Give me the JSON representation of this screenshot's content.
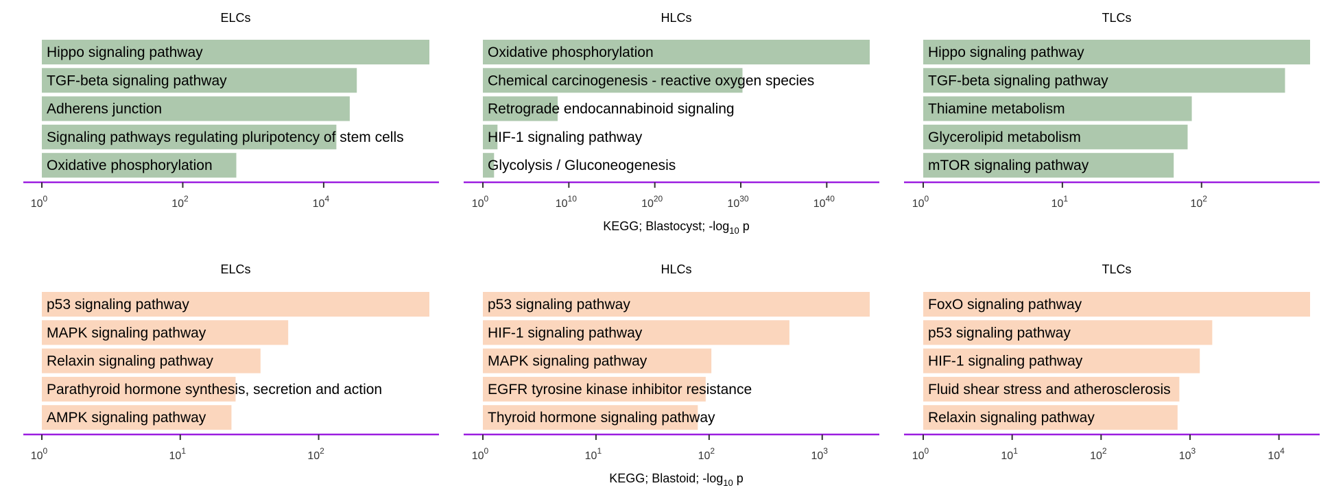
{
  "colors": {
    "blastocyst_bar": "#adc8ad",
    "blastoid_bar": "#fbd6bd",
    "axis_line": "#9b1de0",
    "tick": "#333333",
    "text": "#000000"
  },
  "chart_data": [
    {
      "type": "bar",
      "orientation": "horizontal",
      "scale": "log",
      "title": "ELCs",
      "group": "Blastocyst",
      "row": 0,
      "col": 0,
      "xlim_log10": [
        0,
        5.5
      ],
      "ticks": [
        {
          "exp": "0"
        },
        {
          "exp": "2"
        },
        {
          "exp": "4"
        }
      ],
      "categories": [
        "Hippo signaling pathway",
        "TGF-beta signaling pathway",
        "Adherens junction",
        "Signaling pathways regulating pluripotency of stem cells",
        "Oxidative phosphorylation"
      ],
      "values_log10": [
        5.5,
        4.47,
        4.37,
        4.18,
        2.76
      ]
    },
    {
      "type": "bar",
      "orientation": "horizontal",
      "scale": "log",
      "title": "HLCs",
      "group": "Blastocyst",
      "row": 0,
      "col": 1,
      "xlim_log10": [
        0,
        45
      ],
      "ticks": [
        {
          "exp": "0"
        },
        {
          "exp": "10"
        },
        {
          "exp": "20"
        },
        {
          "exp": "30"
        },
        {
          "exp": "40"
        }
      ],
      "categories": [
        "Oxidative phosphorylation",
        "Chemical carcinogenesis - reactive oxygen species",
        "Retrograde endocannabinoid signaling",
        "HIF-1 signaling pathway",
        "Glycolysis / Gluconeogenesis"
      ],
      "values_log10": [
        45,
        30.2,
        8.7,
        1.7,
        1.3
      ]
    },
    {
      "type": "bar",
      "orientation": "horizontal",
      "scale": "log",
      "title": "TLCs",
      "group": "Blastocyst",
      "row": 0,
      "col": 2,
      "xlim_log10": [
        0,
        2.78
      ],
      "ticks": [
        {
          "exp": "0"
        },
        {
          "exp": "1"
        },
        {
          "exp": "2"
        }
      ],
      "categories": [
        "Hippo signaling pathway",
        "TGF-beta signaling pathway",
        "Thiamine metabolism",
        "Glycerolipid metabolism",
        "mTOR signaling pathway"
      ],
      "values_log10": [
        2.78,
        2.6,
        1.93,
        1.9,
        1.8
      ]
    },
    {
      "type": "bar",
      "orientation": "horizontal",
      "scale": "log",
      "title": "ELCs",
      "group": "Blastoid",
      "row": 1,
      "col": 0,
      "xlim_log10": [
        0,
        2.8
      ],
      "ticks": [
        {
          "exp": "0"
        },
        {
          "exp": "1"
        },
        {
          "exp": "2"
        }
      ],
      "categories": [
        "p53 signaling pathway",
        "MAPK signaling pathway",
        "Relaxin signaling pathway",
        "Parathyroid hormone synthesis, secretion and action",
        "AMPK signaling pathway"
      ],
      "values_log10": [
        2.8,
        1.78,
        1.58,
        1.4,
        1.37
      ]
    },
    {
      "type": "bar",
      "orientation": "horizontal",
      "scale": "log",
      "title": "HLCs",
      "group": "Blastoid",
      "row": 1,
      "col": 1,
      "xlim_log10": [
        0,
        3.42
      ],
      "ticks": [
        {
          "exp": "0"
        },
        {
          "exp": "1"
        },
        {
          "exp": "2"
        },
        {
          "exp": "3"
        }
      ],
      "categories": [
        "p53 signaling pathway",
        "HIF-1 signaling pathway",
        "MAPK signaling pathway",
        "EGFR tyrosine kinase inhibitor resistance",
        "Thyroid hormone signaling pathway"
      ],
      "values_log10": [
        3.42,
        2.71,
        2.02,
        1.97,
        1.9
      ]
    },
    {
      "type": "bar",
      "orientation": "horizontal",
      "scale": "log",
      "title": "TLCs",
      "group": "Blastoid",
      "row": 1,
      "col": 2,
      "xlim_log10": [
        0,
        4.35
      ],
      "ticks": [
        {
          "exp": "0"
        },
        {
          "exp": "1"
        },
        {
          "exp": "2"
        },
        {
          "exp": "3"
        },
        {
          "exp": "4"
        }
      ],
      "categories": [
        "FoxO signaling pathway",
        "p53 signaling pathway",
        "HIF-1 signaling pathway",
        "Fluid shear stress and atherosclerosis",
        "Relaxin signaling pathway"
      ],
      "values_log10": [
        4.35,
        3.25,
        3.11,
        2.88,
        2.86
      ]
    }
  ],
  "xlabels": [
    {
      "row": 0,
      "text": "KEGG; Blastocyst; -log",
      "sub": "10",
      "after": " p"
    },
    {
      "row": 1,
      "text": "KEGG; Blastoid; -log",
      "sub": "10",
      "after": " p"
    }
  ],
  "tick_base": "10"
}
